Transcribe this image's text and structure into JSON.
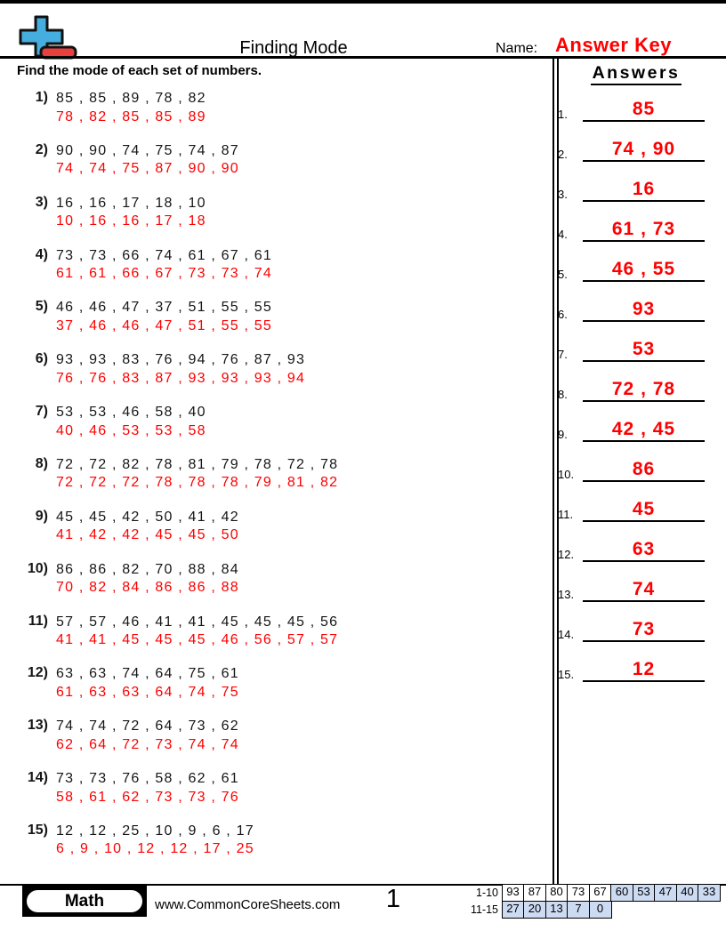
{
  "colors": {
    "accent_red": "#fe0000",
    "icon_blue": "#45aede",
    "icon_red": "#e8403d",
    "score_cell_blue": "#ccdaf2"
  },
  "header": {
    "title": "Finding Mode",
    "name_label": "Name:",
    "name_value": "Answer Key",
    "logo_icon": "plus-minus-icon"
  },
  "instruction": "Find the mode of each set of numbers.",
  "answers_header": "Answers",
  "problems": [
    {
      "num": "1)",
      "given": "85 , 85 , 89 , 78 , 82",
      "sorted": "78 , 82 , 85 , 85 , 89"
    },
    {
      "num": "2)",
      "given": "90 , 90 , 74 , 75 , 74 , 87",
      "sorted": "74 , 74 , 75 , 87 , 90 , 90"
    },
    {
      "num": "3)",
      "given": "16 , 16 , 17 , 18 , 10",
      "sorted": "10 , 16 , 16 , 17 , 18"
    },
    {
      "num": "4)",
      "given": "73 , 73 , 66 , 74 , 61 , 67 , 61",
      "sorted": "61 , 61 , 66 , 67 , 73 , 73 , 74"
    },
    {
      "num": "5)",
      "given": "46 , 46 , 47 , 37 , 51 , 55 , 55",
      "sorted": "37 , 46 , 46 , 47 , 51 , 55 , 55"
    },
    {
      "num": "6)",
      "given": "93 , 93 , 83 , 76 , 94 , 76 , 87 , 93",
      "sorted": "76 , 76 , 83 , 87 , 93 , 93 , 93 , 94"
    },
    {
      "num": "7)",
      "given": "53 , 53 , 46 , 58 , 40",
      "sorted": "40 , 46 , 53 , 53 , 58"
    },
    {
      "num": "8)",
      "given": "72 , 72 , 82 , 78 , 81 , 79 , 78 , 72 , 78",
      "sorted": "72 , 72 , 72 , 78 , 78 , 78 , 79 , 81 , 82"
    },
    {
      "num": "9)",
      "given": "45 , 45 , 42 , 50 , 41 , 42",
      "sorted": "41 , 42 , 42 , 45 , 45 , 50"
    },
    {
      "num": "10)",
      "given": "86 , 86 , 82 , 70 , 88 , 84",
      "sorted": "70 , 82 , 84 , 86 , 86 , 88"
    },
    {
      "num": "11)",
      "given": "57 , 57 , 46 , 41 , 41 , 45 , 45 , 45 , 56",
      "sorted": "41 , 41 , 45 , 45 , 45 , 46 , 56 , 57 , 57"
    },
    {
      "num": "12)",
      "given": "63 , 63 , 74 , 64 , 75 , 61",
      "sorted": "61 , 63 , 63 , 64 , 74 , 75"
    },
    {
      "num": "13)",
      "given": "74 , 74 , 72 , 64 , 73 , 62",
      "sorted": "62 , 64 , 72 , 73 , 74 , 74"
    },
    {
      "num": "14)",
      "given": "73 , 73 , 76 , 58 , 62 , 61",
      "sorted": "58 , 61 , 62 , 73 , 73 , 76"
    },
    {
      "num": "15)",
      "given": "12 , 12 , 25 , 10 , 9 , 6 , 17",
      "sorted": "6 , 9 , 10 , 12 , 12 , 17 , 25"
    }
  ],
  "answers": [
    {
      "num": "1.",
      "value": "85"
    },
    {
      "num": "2.",
      "value": "74 , 90"
    },
    {
      "num": "3.",
      "value": "16"
    },
    {
      "num": "4.",
      "value": "61 , 73"
    },
    {
      "num": "5.",
      "value": "46 , 55"
    },
    {
      "num": "6.",
      "value": "93"
    },
    {
      "num": "7.",
      "value": "53"
    },
    {
      "num": "8.",
      "value": "72 , 78"
    },
    {
      "num": "9.",
      "value": "42 , 45"
    },
    {
      "num": "10.",
      "value": "86"
    },
    {
      "num": "11.",
      "value": "45"
    },
    {
      "num": "12.",
      "value": "63"
    },
    {
      "num": "13.",
      "value": "74"
    },
    {
      "num": "14.",
      "value": "73"
    },
    {
      "num": "15.",
      "value": "12"
    }
  ],
  "footer": {
    "badge": "Math",
    "website": "www.CommonCoreSheets.com",
    "page_number": "1",
    "score_table": {
      "rows": [
        {
          "label": "1-10",
          "cells": [
            {
              "v": "93",
              "blue": false
            },
            {
              "v": "87",
              "blue": false
            },
            {
              "v": "80",
              "blue": false
            },
            {
              "v": "73",
              "blue": false
            },
            {
              "v": "67",
              "blue": false
            },
            {
              "v": "60",
              "blue": true
            },
            {
              "v": "53",
              "blue": true
            },
            {
              "v": "47",
              "blue": true
            },
            {
              "v": "40",
              "blue": true
            },
            {
              "v": "33",
              "blue": true
            }
          ]
        },
        {
          "label": "11-15",
          "cells": [
            {
              "v": "27",
              "blue": true
            },
            {
              "v": "20",
              "blue": true
            },
            {
              "v": "13",
              "blue": true
            },
            {
              "v": "7",
              "blue": true
            },
            {
              "v": "0",
              "blue": true
            }
          ]
        }
      ]
    }
  }
}
